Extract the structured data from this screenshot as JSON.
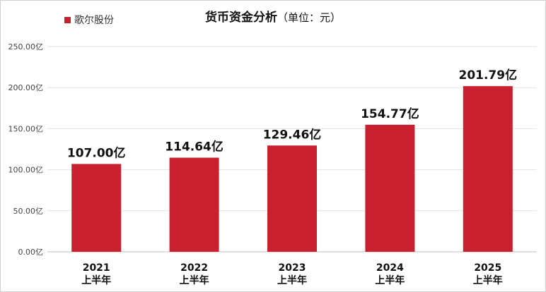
{
  "title": "货币资金分析",
  "title_unit": "（单位：元）",
  "legend": {
    "label": "歌尔股份",
    "color": "#c8202f"
  },
  "chart_data": {
    "type": "bar",
    "categories": [
      [
        "2021",
        "上半年"
      ],
      [
        "2022",
        "上半年"
      ],
      [
        "2023",
        "上半年"
      ],
      [
        "2024",
        "上半年"
      ],
      [
        "2025",
        "上半年"
      ]
    ],
    "series": [
      {
        "name": "歌尔股份",
        "values": [
          107.0,
          114.64,
          129.46,
          154.77,
          201.79
        ],
        "color": "#c8202f"
      }
    ],
    "data_labels": [
      "107.00亿",
      "114.64亿",
      "129.46亿",
      "154.77亿",
      "201.79亿"
    ],
    "y_ticks": [
      0,
      50,
      100,
      150,
      200,
      250
    ],
    "y_tick_labels": [
      "0.00亿",
      "50.00亿",
      "100.00亿",
      "150.00亿",
      "200.00亿",
      "250.00亿"
    ],
    "ylim": [
      0,
      250
    ],
    "grid": true,
    "legend_position": "top-left"
  }
}
